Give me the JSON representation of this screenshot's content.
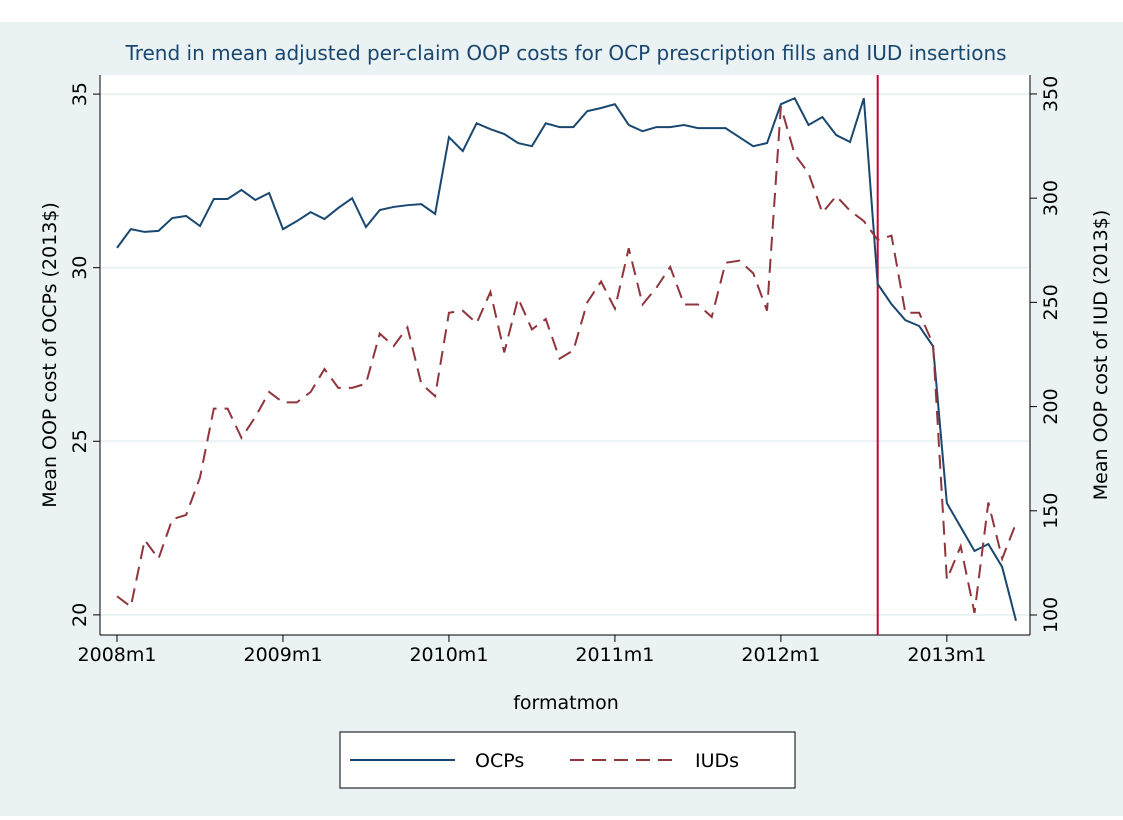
{
  "chart_data": {
    "type": "line",
    "title": "Trend in mean adjusted per-claim OOP costs for OCP prescription fills and IUD insertions",
    "x_label": "formatmon",
    "y_label": "Mean OOP cost of OCPs (2013$)",
    "y2_label": "Mean OOP cost of IUD (2013$)",
    "categories": [
      "2008m1",
      null,
      null,
      null,
      null,
      null,
      null,
      null,
      null,
      null,
      null,
      null,
      "2009m1",
      null,
      null,
      null,
      null,
      null,
      null,
      null,
      null,
      null,
      null,
      null,
      "2010m1",
      null,
      null,
      null,
      null,
      null,
      null,
      null,
      null,
      null,
      null,
      null,
      "2011m1",
      null,
      null,
      null,
      null,
      null,
      null,
      null,
      null,
      null,
      null,
      null,
      "2012m1",
      null,
      null,
      null,
      null,
      null,
      null,
      null,
      null,
      null,
      null,
      null,
      "2013m1",
      null,
      null,
      null,
      null,
      null
    ],
    "series": [
      {
        "name": "OCPs",
        "color": "#1a476f",
        "dash": false,
        "values": [
          30.57,
          31.11,
          31.03,
          31.06,
          31.43,
          31.49,
          31.2,
          31.98,
          31.98,
          32.24,
          31.95,
          32.15,
          31.11,
          31.34,
          31.6,
          31.4,
          31.72,
          32.0,
          31.17,
          31.66,
          31.75,
          31.8,
          31.83,
          31.55,
          33.76,
          33.36,
          34.16,
          33.99,
          33.85,
          33.59,
          33.5,
          34.16,
          34.05,
          34.05,
          34.51,
          34.6,
          34.71,
          34.11,
          33.93,
          34.05,
          34.05,
          34.11,
          34.02,
          34.02,
          34.02,
          33.76,
          33.5,
          33.59,
          34.71,
          34.88,
          34.11,
          34.34,
          33.82,
          33.62,
          34.88,
          29.53,
          28.95,
          28.49,
          28.32,
          27.74,
          23.22,
          22.53,
          21.84,
          22.04,
          21.38,
          19.83
        ]
      },
      {
        "name": "IUDs",
        "color": "#90353b",
        "dash": true,
        "axis": "y2",
        "values": [
          109,
          104,
          136,
          127,
          146,
          148,
          166,
          199,
          199,
          185,
          195,
          207,
          202,
          202,
          207,
          218,
          209,
          209,
          211,
          235,
          229,
          238,
          211,
          205,
          245,
          246,
          240,
          255,
          226,
          252,
          237,
          242,
          223,
          227,
          250,
          260,
          247,
          276,
          249,
          257,
          267,
          249,
          249,
          243,
          269,
          270,
          264,
          246,
          344,
          321,
          312,
          293,
          301,
          294,
          289,
          280,
          282,
          245,
          245,
          230,
          117,
          133,
          101,
          154,
          127,
          144
        ]
      }
    ],
    "ylim": [
      19.42,
      35.55
    ],
    "yticks": [
      20,
      25,
      30,
      35
    ],
    "y2lim": [
      90.4,
      359.1
    ],
    "y2ticks": [
      100,
      150,
      200,
      250,
      300,
      350
    ],
    "grid": true,
    "reference_line": {
      "at": 55,
      "color": "#c10534"
    },
    "legend": "bottom"
  }
}
